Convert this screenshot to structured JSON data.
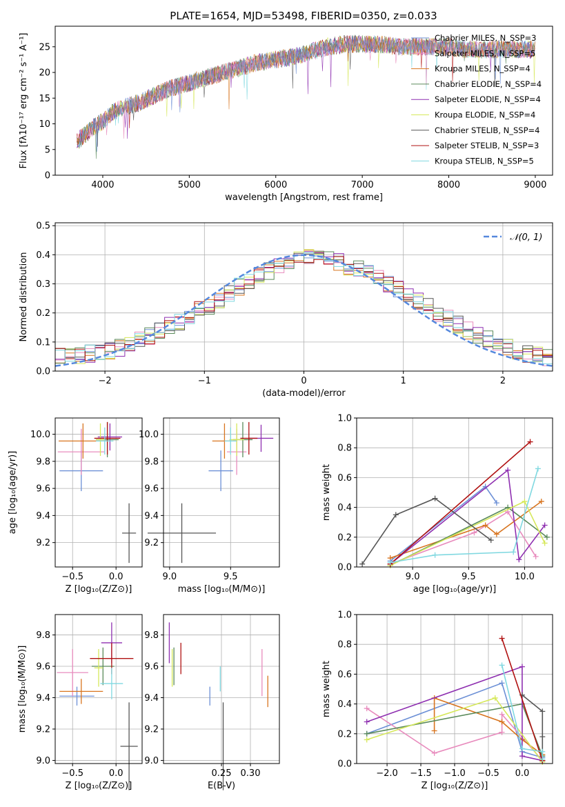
{
  "title": "PLATE=1654, MJD=53498, FIBERID=0350, z=0.033",
  "colors": {
    "chabrier_miles": "#6b8fd6",
    "salpeter_miles": "#e88bbd",
    "kroupa_miles": "#d8741e",
    "chabrier_elodie": "#5a8a5a",
    "salpeter_elodie": "#8e2fb0",
    "kroupa_elodie": "#d6e85a",
    "chabrier_stelib": "#555555",
    "salpeter_stelib": "#b01010",
    "kroupa_stelib": "#7fd8e0",
    "grid": "#b0b0b0",
    "gauss": "#5588dd"
  },
  "chart_data": [
    {
      "id": "spectrum",
      "type": "line",
      "xlabel": "wavelength [Angstrom, rest frame]",
      "ylabel": "Flux [fλ10⁻¹⁷ erg cm⁻² s⁻¹ A⁻¹]",
      "xlim": [
        3450,
        9200
      ],
      "ylim": [
        0,
        29
      ],
      "xticks": [
        "4000",
        "5000",
        "6000",
        "7000",
        "8000",
        "9000"
      ],
      "yticks": [
        "0",
        "5",
        "10",
        "15",
        "20",
        "25"
      ],
      "legend_position": "top-right",
      "data_range": [
        3700,
        9000
      ],
      "data_curve": {
        "x": [
          3700,
          3800,
          3900,
          4000,
          4100,
          4200,
          4300,
          4400,
          4600,
          4800,
          5000,
          5200,
          5400,
          5600,
          5800,
          6000,
          6200,
          6400,
          6600,
          6800,
          7000,
          7200,
          7400,
          7600,
          7800,
          8000,
          8200,
          8400,
          8600,
          8800,
          9000
        ],
        "y": [
          6.5,
          8,
          9.5,
          10.5,
          12,
          13,
          13.5,
          14,
          15.5,
          17,
          18,
          19,
          20,
          21,
          22,
          22.5,
          23,
          24,
          25,
          25.5,
          25.5,
          25.5,
          25,
          25,
          25,
          25,
          24.5,
          24.5,
          24.5,
          24.5,
          24.5
        ]
      },
      "series": [
        {
          "name": "Chabrier MILES, N_SSP=3",
          "color_key": "chabrier_miles"
        },
        {
          "name": "Salpeter MILES, N_SSP=5",
          "color_key": "salpeter_miles"
        },
        {
          "name": "Kroupa MILES, N_SSP=4",
          "color_key": "kroupa_miles"
        },
        {
          "name": "Chabrier ELODIE, N_SSP=4",
          "color_key": "chabrier_elodie"
        },
        {
          "name": "Salpeter ELODIE, N_SSP=4",
          "color_key": "salpeter_elodie"
        },
        {
          "name": "Kroupa ELODIE, N_SSP=4",
          "color_key": "kroupa_elodie"
        },
        {
          "name": "Chabrier STELIB, N_SSP=4",
          "color_key": "chabrier_stelib"
        },
        {
          "name": "Salpeter STELIB, N_SSP=3",
          "color_key": "salpeter_stelib"
        },
        {
          "name": "Kroupa STELIB, N_SSP=5",
          "color_key": "kroupa_stelib"
        }
      ]
    },
    {
      "id": "residuals",
      "type": "line",
      "xlabel": "(data-model)/error",
      "ylabel": "Normed distribution",
      "xlim": [
        -2.5,
        2.5
      ],
      "ylim": [
        0,
        0.51
      ],
      "xticks": [
        "−2",
        "−1",
        "0",
        "1",
        "2"
      ],
      "yticks": [
        "0.0",
        "0.1",
        "0.2",
        "0.3",
        "0.4",
        "0.5"
      ],
      "legend": "𝒩(0, 1)",
      "legend_position": "top-right",
      "bin_width": 0.1,
      "model_curve": "N(0,1)",
      "histogram_mean": [
        0.05,
        0.05,
        0.055,
        0.06,
        0.065,
        0.07,
        0.08,
        0.09,
        0.105,
        0.12,
        0.14,
        0.155,
        0.17,
        0.19,
        0.21,
        0.225,
        0.245,
        0.265,
        0.29,
        0.31,
        0.33,
        0.345,
        0.36,
        0.37,
        0.38,
        0.39,
        0.39,
        0.385,
        0.375,
        0.36,
        0.35,
        0.335,
        0.32,
        0.3,
        0.28,
        0.26,
        0.24,
        0.22,
        0.2,
        0.18,
        0.16,
        0.14,
        0.125,
        0.11,
        0.095,
        0.08,
        0.07,
        0.06,
        0.055,
        0.045
      ]
    },
    {
      "id": "age_vs_Z",
      "type": "scatter",
      "xlabel": "Z [log₁₀(Z/Z⊙)]",
      "ylabel": "age  [log₁₀(age/yr)]",
      "xlim": [
        -0.7,
        0.3
      ],
      "ylim": [
        9.02,
        10.12
      ],
      "xticks": [
        "−0.5",
        "0.0"
      ],
      "yticks": [
        "9.2",
        "9.4",
        "9.6",
        "9.8",
        "10.0"
      ],
      "points": [
        {
          "color_key": "chabrier_miles",
          "x": -0.4,
          "xerr": 0.25,
          "y": 9.73,
          "yerr": 0.15
        },
        {
          "color_key": "salpeter_miles",
          "x": -0.4,
          "xerr": 0.27,
          "y": 9.87,
          "yerr": 0.17
        },
        {
          "color_key": "kroupa_miles",
          "x": -0.38,
          "xerr": 0.28,
          "y": 9.95,
          "yerr": 0.13
        },
        {
          "color_key": "chabrier_elodie",
          "x": -0.1,
          "xerr": 0.13,
          "y": 9.96,
          "yerr": 0.13
        },
        {
          "color_key": "salpeter_elodie",
          "x": -0.07,
          "xerr": 0.14,
          "y": 9.98,
          "yerr": 0.1
        },
        {
          "color_key": "kroupa_elodie",
          "x": -0.18,
          "xerr": 0.05,
          "y": 9.96,
          "yerr": 0.12
        },
        {
          "color_key": "chabrier_stelib",
          "x": 0.15,
          "xerr": 0.08,
          "y": 9.27,
          "yerr": 0.22
        },
        {
          "color_key": "salpeter_stelib",
          "x": -0.1,
          "xerr": 0.15,
          "y": 9.97,
          "yerr": 0.12
        },
        {
          "color_key": "kroupa_stelib",
          "x": -0.13,
          "xerr": 0.1,
          "y": 9.95,
          "yerr": 0.1
        }
      ]
    },
    {
      "id": "age_vs_mass",
      "type": "scatter",
      "xlabel": "mass [log₁₀(M/M⊙)]",
      "ylabel": "",
      "xlim": [
        8.95,
        9.9
      ],
      "ylim": [
        9.02,
        10.12
      ],
      "xticks": [
        "9.0",
        "9.5"
      ],
      "yticks": [
        "9.2",
        "9.4",
        "9.6",
        "9.8",
        "10.0"
      ],
      "points": [
        {
          "color_key": "chabrier_miles",
          "x": 9.42,
          "xerr": 0.1,
          "y": 9.73,
          "yerr": 0.15
        },
        {
          "color_key": "salpeter_miles",
          "x": 9.55,
          "xerr": 0.08,
          "y": 9.87,
          "yerr": 0.17
        },
        {
          "color_key": "kroupa_miles",
          "x": 9.45,
          "xerr": 0.1,
          "y": 9.95,
          "yerr": 0.13
        },
        {
          "color_key": "chabrier_elodie",
          "x": 9.6,
          "xerr": 0.08,
          "y": 9.96,
          "yerr": 0.13
        },
        {
          "color_key": "salpeter_elodie",
          "x": 9.75,
          "xerr": 0.1,
          "y": 9.97,
          "yerr": 0.1
        },
        {
          "color_key": "kroupa_elodie",
          "x": 9.55,
          "xerr": 0.06,
          "y": 9.96,
          "yerr": 0.12
        },
        {
          "color_key": "chabrier_stelib",
          "x": 9.1,
          "xerr": 0.28,
          "y": 9.27,
          "yerr": 0.22
        },
        {
          "color_key": "salpeter_stelib",
          "x": 9.65,
          "xerr": 0.07,
          "y": 9.97,
          "yerr": 0.12
        },
        {
          "color_key": "kroupa_stelib",
          "x": 9.5,
          "xerr": 0.05,
          "y": 9.95,
          "yerr": 0.1
        }
      ]
    },
    {
      "id": "weight_vs_age",
      "type": "line",
      "xlabel": "age  [log₁₀(age/yr)]",
      "ylabel": "mass weight",
      "xlim": [
        8.5,
        10.25
      ],
      "ylim": [
        0,
        1
      ],
      "xticks": [
        "9.0",
        "9.5",
        "10.0"
      ],
      "yticks": [
        "0.0",
        "0.2",
        "0.4",
        "0.6",
        "0.8",
        "1.0"
      ],
      "series": [
        {
          "color_key": "chabrier_miles",
          "x": [
            8.8,
            9.65,
            9.75
          ],
          "y": [
            0.04,
            0.54,
            0.43
          ]
        },
        {
          "color_key": "salpeter_miles",
          "x": [
            8.8,
            9.55,
            9.85,
            10.1
          ],
          "y": [
            0.02,
            0.23,
            0.37,
            0.07
          ]
        },
        {
          "color_key": "kroupa_miles",
          "x": [
            8.8,
            9.65,
            9.75,
            10.15
          ],
          "y": [
            0.06,
            0.28,
            0.22,
            0.44
          ]
        },
        {
          "color_key": "chabrier_elodie",
          "x": [
            8.8,
            9.85,
            10.2
          ],
          "y": [
            0.01,
            0.4,
            0.2
          ]
        },
        {
          "color_key": "salpeter_elodie",
          "x": [
            8.8,
            9.85,
            9.95,
            10.18
          ],
          "y": [
            0.02,
            0.65,
            0.05,
            0.28
          ]
        },
        {
          "color_key": "kroupa_elodie",
          "x": [
            8.8,
            10.0,
            10.18
          ],
          "y": [
            0.01,
            0.44,
            0.16
          ]
        },
        {
          "color_key": "chabrier_stelib",
          "x": [
            8.55,
            8.85,
            9.2,
            9.7
          ],
          "y": [
            0.02,
            0.35,
            0.46,
            0.18
          ]
        },
        {
          "color_key": "salpeter_stelib",
          "x": [
            8.8,
            10.05
          ],
          "y": [
            0.02,
            0.84
          ]
        },
        {
          "color_key": "kroupa_stelib",
          "x": [
            8.8,
            9.2,
            9.9,
            10.12
          ],
          "y": [
            0.03,
            0.08,
            0.1,
            0.66
          ]
        }
      ]
    },
    {
      "id": "mass_vs_Z",
      "type": "scatter",
      "xlabel": "Z [log₁₀(Z/Z⊙)]",
      "ylabel": "mass [log₁₀(M/M⊙)]",
      "xlim": [
        -0.7,
        0.3
      ],
      "ylim": [
        8.98,
        9.93
      ],
      "xticks": [
        "−0.5",
        "0.0"
      ],
      "yticks": [
        "9.0",
        "9.2",
        "9.4",
        "9.6",
        "9.8"
      ],
      "points": [
        {
          "color_key": "chabrier_miles",
          "x": -0.45,
          "xerr": 0.2,
          "y": 9.41,
          "yerr": 0.06
        },
        {
          "color_key": "salpeter_miles",
          "x": -0.5,
          "xerr": 0.18,
          "y": 9.56,
          "yerr": 0.15
        },
        {
          "color_key": "kroupa_miles",
          "x": -0.4,
          "xerr": 0.25,
          "y": 9.44,
          "yerr": 0.08
        },
        {
          "color_key": "chabrier_elodie",
          "x": -0.15,
          "xerr": 0.13,
          "y": 9.6,
          "yerr": 0.12
        },
        {
          "color_key": "salpeter_elodie",
          "x": -0.05,
          "xerr": 0.12,
          "y": 9.75,
          "yerr": 0.13
        },
        {
          "color_key": "kroupa_elodie",
          "x": -0.2,
          "xerr": 0.05,
          "y": 9.59,
          "yerr": 0.12
        },
        {
          "color_key": "chabrier_stelib",
          "x": 0.15,
          "xerr": 0.1,
          "y": 9.09,
          "yerr": 0.28
        },
        {
          "color_key": "salpeter_stelib",
          "x": -0.05,
          "xerr": 0.25,
          "y": 9.65,
          "yerr": 0.1
        },
        {
          "color_key": "kroupa_stelib",
          "x": -0.05,
          "xerr": 0.13,
          "y": 9.49,
          "yerr": 0.1
        }
      ]
    },
    {
      "id": "mass_vs_ebv",
      "type": "scatter",
      "xlabel": "E(B-V)",
      "ylabel": "",
      "xlim": [
        0.15,
        0.35
      ],
      "ylim": [
        8.98,
        9.93
      ],
      "xticks": [
        "0.25",
        "0.30"
      ],
      "yticks": [
        "9.0",
        "9.2",
        "9.4",
        "9.6",
        "9.8"
      ],
      "points": [
        {
          "color_key": "chabrier_miles",
          "x": 0.23,
          "xerr": 0,
          "y": 9.41,
          "yerr": 0.06
        },
        {
          "color_key": "salpeter_miles",
          "x": 0.32,
          "xerr": 0,
          "y": 9.56,
          "yerr": 0.15
        },
        {
          "color_key": "kroupa_miles",
          "x": 0.33,
          "xerr": 0,
          "y": 9.44,
          "yerr": 0.1
        },
        {
          "color_key": "chabrier_elodie",
          "x": 0.168,
          "xerr": 0,
          "y": 9.6,
          "yerr": 0.12
        },
        {
          "color_key": "salpeter_elodie",
          "x": 0.16,
          "xerr": 0,
          "y": 9.75,
          "yerr": 0.13
        },
        {
          "color_key": "kroupa_elodie",
          "x": 0.165,
          "xerr": 0,
          "y": 9.59,
          "yerr": 0.12
        },
        {
          "color_key": "chabrier_stelib",
          "x": 0.253,
          "xerr": 0,
          "y": 9.09,
          "yerr": 0.28
        },
        {
          "color_key": "salpeter_stelib",
          "x": 0.18,
          "xerr": 0,
          "y": 9.65,
          "yerr": 0.1
        },
        {
          "color_key": "kroupa_stelib",
          "x": 0.248,
          "xerr": 0,
          "y": 9.52,
          "yerr": 0.08
        }
      ]
    },
    {
      "id": "weight_vs_Z",
      "type": "line",
      "xlabel": "Z [log₁₀(Z/Z⊙)]",
      "ylabel": "mass weight",
      "xlim": [
        -2.45,
        0.45
      ],
      "ylim": [
        0,
        1
      ],
      "xticks": [
        "−2.0",
        "−1.5",
        "−1.0",
        "−0.5",
        "0.0"
      ],
      "yticks": [
        "0.0",
        "0.2",
        "0.4",
        "0.6",
        "0.8",
        "1.0"
      ],
      "series": [
        {
          "color_key": "chabrier_miles",
          "x": [
            -2.3,
            -0.3,
            0.0,
            0.3
          ],
          "y": [
            0.2,
            0.54,
            0.08,
            0.04
          ]
        },
        {
          "color_key": "salpeter_miles",
          "x": [
            -2.3,
            -1.3,
            -0.3,
            -0.3,
            0.3
          ],
          "y": [
            0.37,
            0.07,
            0.21,
            0.33,
            0.02
          ]
        },
        {
          "color_key": "kroupa_miles",
          "x": [
            -1.3,
            -1.3,
            -0.3,
            0.0,
            0.3
          ],
          "y": [
            0.22,
            0.44,
            0.28,
            0.16,
            0.06
          ]
        },
        {
          "color_key": "chabrier_elodie",
          "x": [
            -2.3,
            0.0,
            0.3
          ],
          "y": [
            0.2,
            0.4,
            0.05
          ]
        },
        {
          "color_key": "salpeter_elodie",
          "x": [
            -2.3,
            0.0,
            0.0,
            0.3
          ],
          "y": [
            0.28,
            0.65,
            0.05,
            0.02
          ]
        },
        {
          "color_key": "kroupa_elodie",
          "x": [
            -2.3,
            -0.4,
            0.3
          ],
          "y": [
            0.16,
            0.44,
            0.01
          ]
        },
        {
          "color_key": "chabrier_stelib",
          "x": [
            0.0,
            0.3,
            0.3,
            0.3
          ],
          "y": [
            0.46,
            0.35,
            0.18,
            0.02
          ]
        },
        {
          "color_key": "salpeter_stelib",
          "x": [
            -0.3,
            0.3
          ],
          "y": [
            0.84,
            0.02
          ]
        },
        {
          "color_key": "kroupa_stelib",
          "x": [
            -0.3,
            0.0,
            0.3,
            0.3
          ],
          "y": [
            0.66,
            0.1,
            0.08,
            0.03
          ]
        }
      ]
    }
  ]
}
